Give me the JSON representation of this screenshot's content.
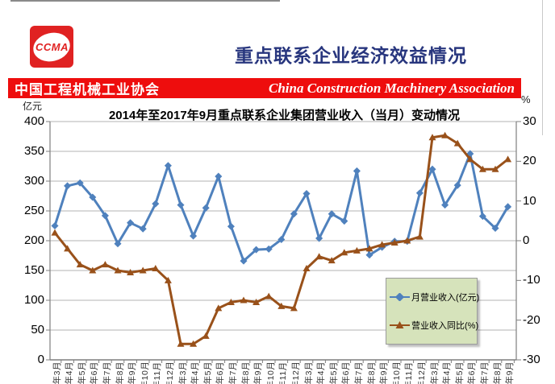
{
  "header": {
    "logo_text": "CCMA",
    "title": "重点联系企业经济效益情况"
  },
  "banner": {
    "cn": "中国工程机械工业协会",
    "en": "China Construction Machinery Association"
  },
  "colors": {
    "banner_red": "#ee0d0d",
    "logo_red": "#e02222",
    "title_navy": "#28367e",
    "series_blue": "#4f81bd",
    "series_brown": "#99511a",
    "legend_bg": "#d6e3bb"
  },
  "chart_data": {
    "type": "line",
    "title": "2014年至2017年9月重点联系企业集团营业收入（当月）变动情况",
    "categories": [
      "14年3月",
      "14年4月",
      "14年5月",
      "14年6月",
      "14年7月",
      "14年8月",
      "14年9月",
      "14年10月",
      "14年11月",
      "14年12月",
      "15年3月",
      "15年4月",
      "15年5月",
      "15年6月",
      "15年7月",
      "15年8月",
      "15年9月",
      "15年10月",
      "15年11月",
      "15年12月",
      "16年3月",
      "16年4月",
      "16年5月",
      "16年6月",
      "16年7月",
      "16年8月",
      "16年9月",
      "16年10月",
      "16年11月",
      "16年12月",
      "17年3月",
      "17年4月",
      "17年5月",
      "17年6月",
      "17年7月",
      "17年8月",
      "17年9月"
    ],
    "series": [
      {
        "name": "月营业收入(亿元)",
        "axis": "left",
        "color": "#4f81bd",
        "marker": "diamond",
        "values": [
          225,
          292,
          297,
          273,
          242,
          195,
          230,
          220,
          262,
          326,
          260,
          208,
          255,
          308,
          224,
          166,
          185,
          186,
          202,
          245,
          279,
          204,
          245,
          233,
          317,
          176,
          189,
          199,
          199,
          280,
          320,
          260,
          293,
          346,
          241,
          221,
          257
        ]
      },
      {
        "name": "营业收入同比(%)",
        "axis": "right",
        "color": "#99511a",
        "marker": "triangle",
        "values": [
          2,
          -2,
          -6,
          -7.5,
          -6,
          -7.5,
          -8,
          -7.5,
          -7,
          -10,
          -26,
          -26,
          -24,
          -17,
          -15.5,
          -15,
          -15.5,
          -14,
          -16.5,
          -17,
          -7,
          -4,
          -5,
          -3,
          -2.5,
          -2,
          -1,
          -0.5,
          0,
          1,
          26,
          26.5,
          24.5,
          20.5,
          18,
          18,
          20.5
        ]
      }
    ],
    "left_axis": {
      "unit": "亿元",
      "min": 0,
      "max": 400,
      "ticks": [
        400,
        350,
        300,
        250,
        200,
        150,
        100,
        50,
        0
      ]
    },
    "right_axis": {
      "unit": "%",
      "min": -30,
      "max": 30,
      "ticks": [
        30,
        20,
        10,
        0,
        -10,
        -20,
        -30
      ]
    },
    "grid": true,
    "legend_position": "inside-bottom-right"
  }
}
